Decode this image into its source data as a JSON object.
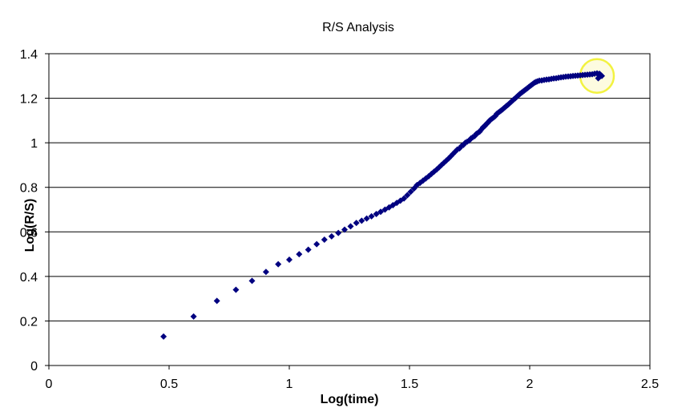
{
  "chart_data": {
    "type": "scatter",
    "title": "R/S Analysis",
    "xlabel": "Log(time)",
    "ylabel": "Log(R/S)",
    "xlim": [
      0,
      2.5
    ],
    "ylim": [
      0,
      1.4
    ],
    "xticks": [
      "0",
      "0.5",
      "1",
      "1.5",
      "2",
      "2.5"
    ],
    "yticks": [
      "0",
      "0.2",
      "0.4",
      "0.6",
      "0.8",
      "1",
      "1.2",
      "1.4"
    ],
    "grid": "horizontal",
    "legend": "none",
    "marker_color": "#000080",
    "highlight_color": "#f2f240",
    "highlight_center": [
      2.28,
      1.3
    ],
    "points": [
      [
        0.477,
        0.13
      ],
      [
        0.602,
        0.22
      ],
      [
        0.699,
        0.29
      ],
      [
        0.778,
        0.34
      ],
      [
        0.845,
        0.38
      ],
      [
        0.903,
        0.42
      ],
      [
        0.954,
        0.455
      ],
      [
        1.0,
        0.475
      ],
      [
        1.041,
        0.5
      ],
      [
        1.079,
        0.52
      ],
      [
        1.114,
        0.545
      ],
      [
        1.146,
        0.565
      ],
      [
        1.176,
        0.58
      ],
      [
        1.204,
        0.595
      ],
      [
        1.23,
        0.61
      ],
      [
        1.255,
        0.625
      ],
      [
        1.279,
        0.64
      ],
      [
        1.301,
        0.65
      ],
      [
        1.322,
        0.66
      ],
      [
        1.342,
        0.67
      ],
      [
        1.362,
        0.68
      ],
      [
        1.38,
        0.69
      ],
      [
        1.398,
        0.7
      ],
      [
        1.415,
        0.71
      ],
      [
        1.431,
        0.72
      ],
      [
        1.447,
        0.73
      ],
      [
        1.462,
        0.74
      ],
      [
        1.477,
        0.75
      ],
      [
        1.491,
        0.765
      ],
      [
        1.505,
        0.78
      ],
      [
        1.519,
        0.795
      ],
      [
        1.531,
        0.81
      ],
      [
        1.544,
        0.82
      ],
      [
        1.556,
        0.83
      ],
      [
        1.568,
        0.84
      ],
      [
        1.58,
        0.85
      ],
      [
        1.591,
        0.86
      ],
      [
        1.602,
        0.87
      ],
      [
        1.613,
        0.88
      ],
      [
        1.623,
        0.89
      ],
      [
        1.633,
        0.9
      ],
      [
        1.643,
        0.91
      ],
      [
        1.653,
        0.92
      ],
      [
        1.663,
        0.93
      ],
      [
        1.672,
        0.94
      ],
      [
        1.681,
        0.95
      ],
      [
        1.69,
        0.96
      ],
      [
        1.699,
        0.97
      ],
      [
        1.708,
        0.975
      ],
      [
        1.716,
        0.985
      ],
      [
        1.724,
        0.99
      ],
      [
        1.732,
        1.0
      ],
      [
        1.74,
        1.005
      ],
      [
        1.748,
        1.01
      ],
      [
        1.756,
        1.02
      ],
      [
        1.763,
        1.025
      ],
      [
        1.771,
        1.03
      ],
      [
        1.778,
        1.04
      ],
      [
        1.785,
        1.045
      ],
      [
        1.792,
        1.05
      ],
      [
        1.799,
        1.06
      ],
      [
        1.806,
        1.07
      ],
      [
        1.813,
        1.075
      ],
      [
        1.82,
        1.085
      ],
      [
        1.826,
        1.09
      ],
      [
        1.833,
        1.1
      ],
      [
        1.839,
        1.105
      ],
      [
        1.845,
        1.11
      ],
      [
        1.851,
        1.115
      ],
      [
        1.857,
        1.12
      ],
      [
        1.863,
        1.13
      ],
      [
        1.869,
        1.135
      ],
      [
        1.875,
        1.14
      ],
      [
        1.881,
        1.145
      ],
      [
        1.887,
        1.15
      ],
      [
        1.892,
        1.155
      ],
      [
        1.898,
        1.16
      ],
      [
        1.903,
        1.165
      ],
      [
        1.909,
        1.17
      ],
      [
        1.914,
        1.175
      ],
      [
        1.919,
        1.18
      ],
      [
        1.924,
        1.185
      ],
      [
        1.929,
        1.19
      ],
      [
        1.934,
        1.195
      ],
      [
        1.94,
        1.2
      ],
      [
        1.945,
        1.205
      ],
      [
        1.95,
        1.21
      ],
      [
        1.955,
        1.215
      ],
      [
        1.96,
        1.22
      ],
      [
        1.966,
        1.225
      ],
      [
        1.972,
        1.23
      ],
      [
        1.978,
        1.235
      ],
      [
        1.984,
        1.24
      ],
      [
        1.99,
        1.245
      ],
      [
        1.996,
        1.25
      ],
      [
        2.002,
        1.255
      ],
      [
        2.008,
        1.26
      ],
      [
        2.014,
        1.265
      ],
      [
        2.02,
        1.27
      ],
      [
        2.026,
        1.273
      ],
      [
        2.032,
        1.276
      ],
      [
        2.04,
        1.279
      ],
      [
        2.05,
        1.28
      ],
      [
        2.06,
        1.282
      ],
      [
        2.07,
        1.284
      ],
      [
        2.08,
        1.285
      ],
      [
        2.09,
        1.287
      ],
      [
        2.1,
        1.289
      ],
      [
        2.11,
        1.29
      ],
      [
        2.12,
        1.292
      ],
      [
        2.13,
        1.294
      ],
      [
        2.14,
        1.295
      ],
      [
        2.15,
        1.297
      ],
      [
        2.16,
        1.298
      ],
      [
        2.17,
        1.299
      ],
      [
        2.18,
        1.3
      ],
      [
        2.19,
        1.301
      ],
      [
        2.2,
        1.302
      ],
      [
        2.21,
        1.303
      ],
      [
        2.22,
        1.304
      ],
      [
        2.23,
        1.305
      ],
      [
        2.24,
        1.306
      ],
      [
        2.25,
        1.307
      ],
      [
        2.26,
        1.308
      ],
      [
        2.27,
        1.31
      ],
      [
        2.28,
        1.312
      ],
      [
        2.29,
        1.31
      ],
      [
        2.295,
        1.305
      ],
      [
        2.3,
        1.3
      ],
      [
        2.29,
        1.295
      ],
      [
        2.285,
        1.29
      ]
    ]
  }
}
